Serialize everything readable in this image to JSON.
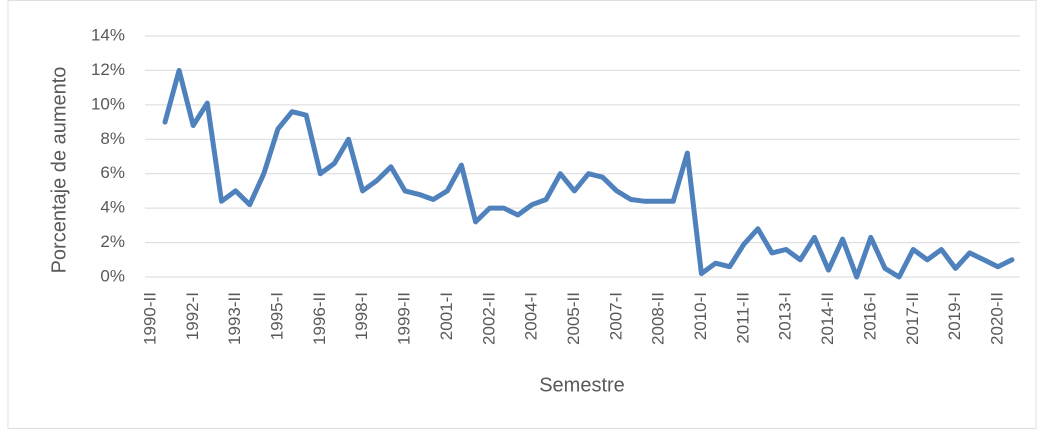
{
  "chart_data": {
    "type": "line",
    "y_label": "Porcentaje de aumento",
    "x_label": "Semestre",
    "categories": [
      "1990-II",
      null,
      null,
      "1992-I",
      null,
      null,
      "1993-II",
      null,
      null,
      "1995-I",
      null,
      null,
      "1996-II",
      null,
      null,
      "1998-I",
      null,
      null,
      "1999-II",
      null,
      null,
      "2001-I",
      null,
      null,
      "2002-II",
      null,
      null,
      "2004-I",
      null,
      null,
      "2005-II",
      null,
      null,
      "2007-I",
      null,
      null,
      "2008-II",
      null,
      null,
      "2010-I",
      null,
      null,
      "2011-II",
      null,
      null,
      "2013-I",
      null,
      null,
      "2014-II",
      null,
      null,
      "2016-I",
      null,
      null,
      "2017-II",
      null,
      null,
      "2019-I",
      null,
      null,
      "2020-II"
    ],
    "values": [
      9.0,
      12.0,
      8.8,
      10.1,
      4.4,
      5.0,
      4.2,
      6.0,
      8.6,
      9.6,
      9.4,
      6.0,
      6.6,
      8.0,
      5.0,
      5.6,
      6.4,
      5.0,
      4.8,
      4.5,
      5.0,
      6.5,
      3.2,
      4.0,
      4.0,
      3.6,
      4.2,
      4.5,
      6.0,
      5.0,
      6.0,
      5.8,
      5.0,
      4.5,
      4.4,
      4.4,
      4.4,
      7.2,
      0.2,
      0.8,
      0.6,
      1.9,
      2.8,
      1.4,
      1.6,
      1.0,
      2.3,
      0.4,
      2.2,
      0.0,
      2.3,
      0.5,
      0.0,
      1.6,
      1.0,
      1.6,
      0.5,
      1.4,
      1.0,
      0.6,
      1.0
    ],
    "color": "#4f81bd",
    "ylim": [
      0,
      14
    ],
    "yticks": [
      {
        "value": 0,
        "label": "0%"
      },
      {
        "value": 2,
        "label": "2%"
      },
      {
        "value": 4,
        "label": "4%"
      },
      {
        "value": 6,
        "label": "6%"
      },
      {
        "value": 8,
        "label": "8%"
      },
      {
        "value": 10,
        "label": "10%"
      },
      {
        "value": 12,
        "label": "12%"
      },
      {
        "value": 14,
        "label": "14%"
      }
    ],
    "grid": true
  }
}
